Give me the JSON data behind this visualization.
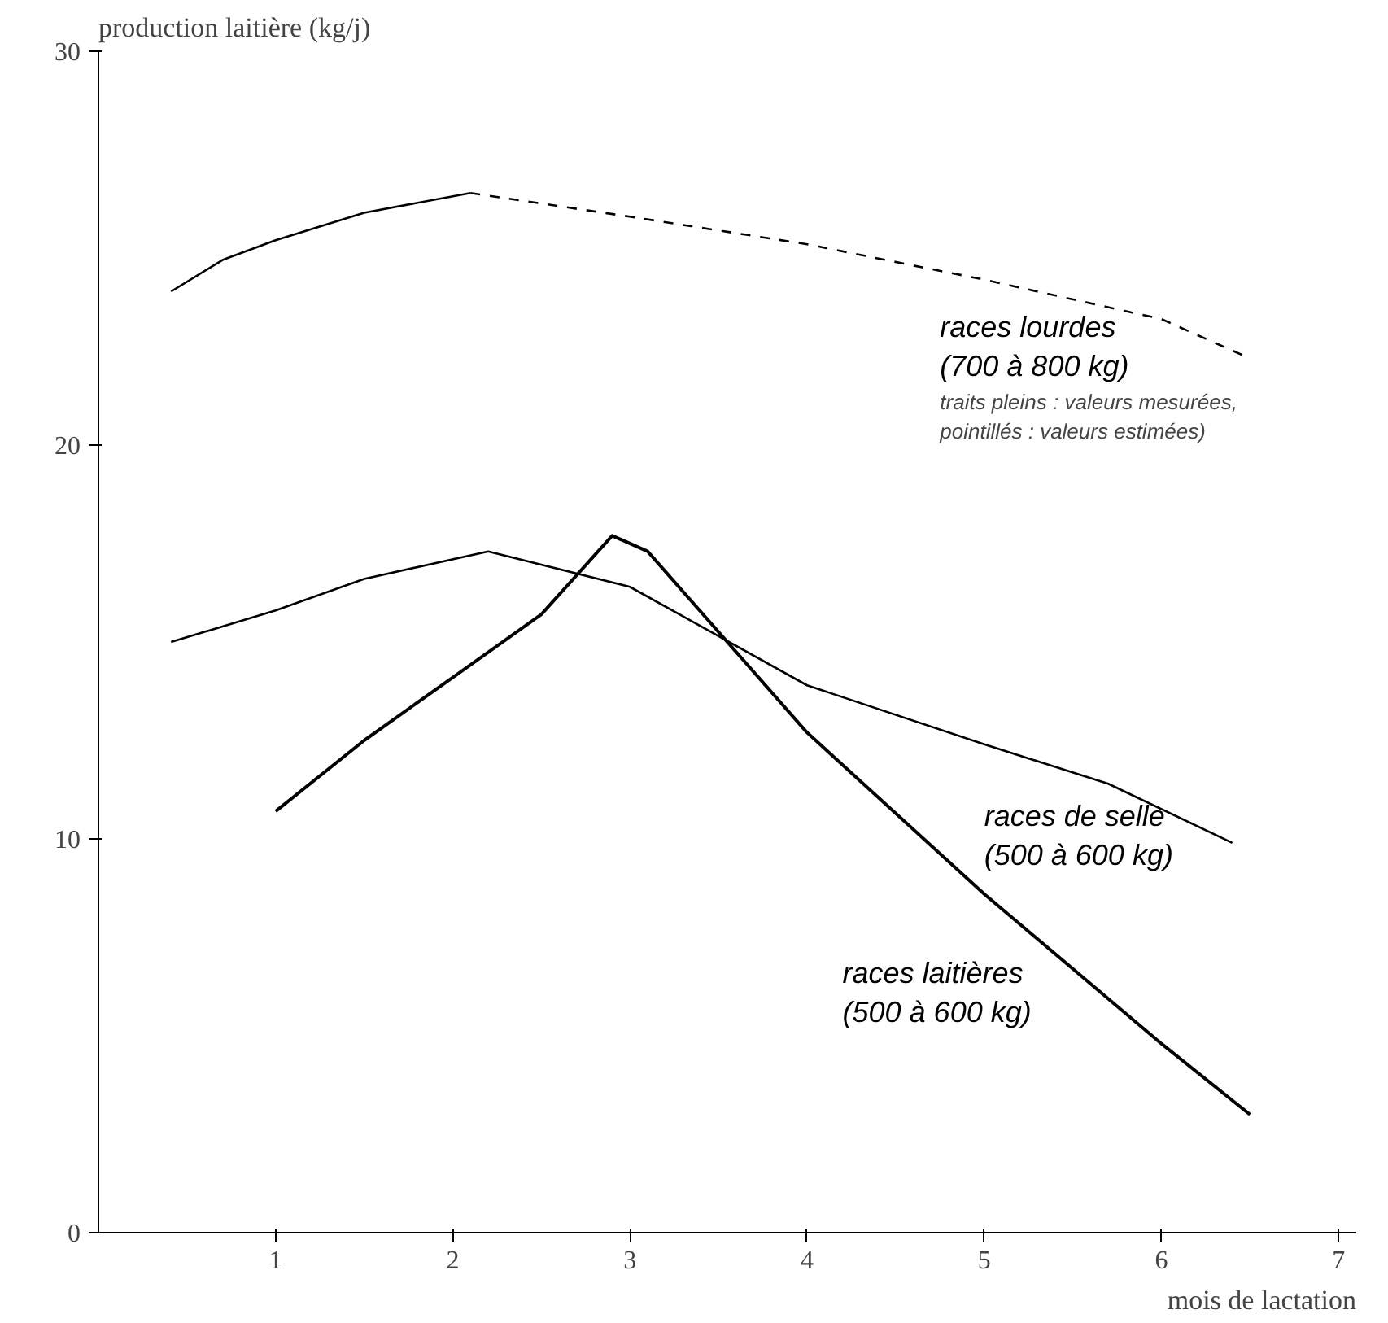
{
  "chart_data": {
    "type": "line",
    "ylabel": "production laitière (kg/j)",
    "xlabel": "mois de lactation",
    "xlim": [
      0,
      7.1
    ],
    "xticks": [
      1,
      2,
      3,
      4,
      5,
      6,
      7
    ],
    "ylim": [
      0,
      30
    ],
    "yticks": [
      0,
      10,
      20,
      30
    ],
    "grid": false,
    "marker": "none",
    "series": [
      {
        "color": "#000000",
        "line_style": "solid",
        "x": [
          0.41,
          0.7,
          1,
          1.5,
          2.1
        ],
        "values": [
          23.9,
          24.7,
          25.2,
          25.9,
          26.4
        ]
      },
      {
        "name": "races lourdes\n(700 à 800 kg)",
        "color": "#000000",
        "line_style": "dashed",
        "x": [
          2.1,
          3,
          4,
          5,
          6,
          6.5
        ],
        "values": [
          26.4,
          25.8,
          25.1,
          24.2,
          23.2,
          22.2
        ]
      },
      {
        "name": "races de selle\n(500 à 600 kg)",
        "color": "#000000",
        "line_style": "solid",
        "x": [
          0.41,
          1,
          1.5,
          2.2,
          3,
          4,
          5,
          5.7,
          6.4
        ],
        "values": [
          15.0,
          15.8,
          16.6,
          17.3,
          16.4,
          13.9,
          12.4,
          11.4,
          9.9
        ]
      },
      {
        "name": "races laitières\n(500 à 600 kg)",
        "color": "#000000",
        "line_style": "solid",
        "x": [
          1,
          1.5,
          2,
          2.5,
          2.9,
          3.1,
          4,
          5,
          6,
          6.5
        ],
        "values": [
          10.7,
          12.5,
          14.1,
          15.7,
          17.7,
          17.3,
          12.7,
          8.6,
          4.8,
          3.0
        ]
      }
    ],
    "annotations": [
      "traits pleins : valeurs mesurées,\npointillés : valeurs estimées)"
    ]
  }
}
